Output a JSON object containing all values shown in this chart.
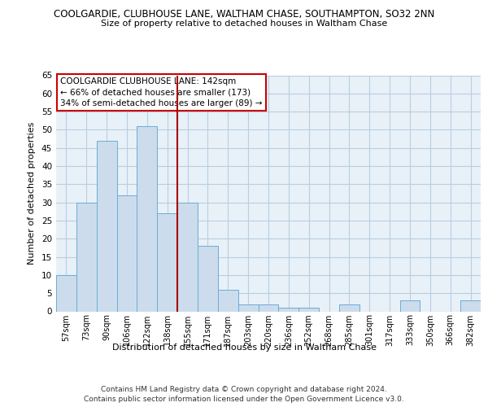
{
  "title1": "COOLGARDIE, CLUBHOUSE LANE, WALTHAM CHASE, SOUTHAMPTON, SO32 2NN",
  "title2": "Size of property relative to detached houses in Waltham Chase",
  "xlabel": "Distribution of detached houses by size in Waltham Chase",
  "ylabel": "Number of detached properties",
  "footnote1": "Contains HM Land Registry data © Crown copyright and database right 2024.",
  "footnote2": "Contains public sector information licensed under the Open Government Licence v3.0.",
  "bar_labels": [
    "57sqm",
    "73sqm",
    "90sqm",
    "106sqm",
    "122sqm",
    "138sqm",
    "155sqm",
    "171sqm",
    "187sqm",
    "203sqm",
    "220sqm",
    "236sqm",
    "252sqm",
    "268sqm",
    "285sqm",
    "301sqm",
    "317sqm",
    "333sqm",
    "350sqm",
    "366sqm",
    "382sqm"
  ],
  "bar_values": [
    10,
    30,
    47,
    32,
    51,
    27,
    30,
    18,
    6,
    2,
    2,
    1,
    1,
    0,
    2,
    0,
    0,
    3,
    0,
    0,
    3
  ],
  "bar_color": "#ccdcec",
  "bar_edge_color": "#6aadd5",
  "highlight_index": 5,
  "highlight_line_color": "#aa0000",
  "ylim": [
    0,
    65
  ],
  "yticks": [
    0,
    5,
    10,
    15,
    20,
    25,
    30,
    35,
    40,
    45,
    50,
    55,
    60,
    65
  ],
  "grid_color": "#b8cfe0",
  "bg_color": "#e8f0f8",
  "annotation_text": "COOLGARDIE CLUBHOUSE LANE: 142sqm\n← 66% of detached houses are smaller (173)\n34% of semi-detached houses are larger (89) →",
  "annotation_box_color": "white",
  "annotation_box_edge": "#cc0000"
}
